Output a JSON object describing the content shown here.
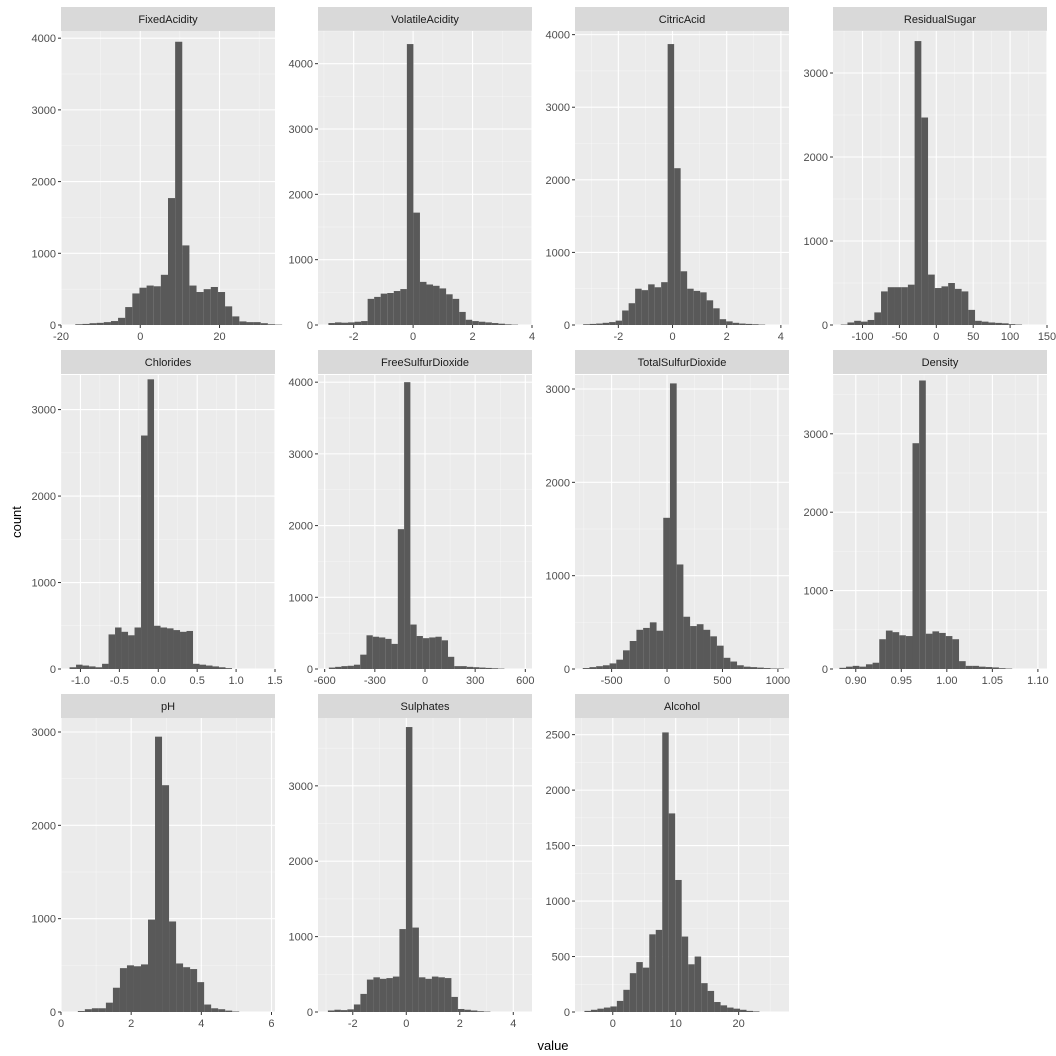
{
  "figure": {
    "xlabel": "value",
    "ylabel": "count",
    "colors": {
      "panel_bg": "#ebebeb",
      "strip_bg": "#d9d9d9",
      "grid_major": "#ffffff",
      "bar_fill": "#595959",
      "tick_text": "#4d4d4d"
    }
  },
  "chart_data": [
    {
      "type": "bar",
      "title": "FixedAcidity",
      "xlim": [
        -20,
        34
      ],
      "ylim": [
        0,
        4100
      ],
      "xticks": [
        -20,
        0,
        20
      ],
      "xtick_labels": [
        "-20",
        "0",
        "20"
      ],
      "yticks": [
        0,
        1000,
        2000,
        3000,
        4000
      ],
      "ytick_labels": [
        "0",
        "1000",
        "2000",
        "3000",
        "4000"
      ],
      "bin_left": -18.2,
      "bin_width": 1.8,
      "values": [
        0,
        10,
        15,
        25,
        30,
        40,
        55,
        100,
        250,
        440,
        520,
        550,
        540,
        700,
        1770,
        3950,
        1110,
        550,
        460,
        500,
        530,
        460,
        260,
        120,
        50,
        40,
        40,
        25,
        10,
        5
      ]
    },
    {
      "type": "bar",
      "title": "VolatileAcidity",
      "xlim": [
        -3.2,
        4
      ],
      "ylim": [
        0,
        4500
      ],
      "xticks": [
        -2,
        0,
        2,
        4
      ],
      "xtick_labels": [
        "-2",
        "0",
        "2",
        "4"
      ],
      "yticks": [
        0,
        1000,
        2000,
        3000,
        4000
      ],
      "ytick_labels": [
        "0",
        "1000",
        "2000",
        "3000",
        "4000"
      ],
      "bin_left": -2.85,
      "bin_width": 0.22,
      "values": [
        30,
        40,
        35,
        40,
        50,
        60,
        400,
        430,
        480,
        490,
        520,
        550,
        4300,
        1720,
        660,
        620,
        600,
        560,
        470,
        400,
        200,
        80,
        60,
        50,
        40,
        30,
        20,
        10,
        5,
        0
      ]
    },
    {
      "type": "bar",
      "title": "CitricAcid",
      "xlim": [
        -3.6,
        4.3
      ],
      "ylim": [
        0,
        4050
      ],
      "xticks": [
        -2,
        0,
        2,
        4
      ],
      "xtick_labels": [
        "-2",
        "0",
        "2",
        "4"
      ],
      "yticks": [
        0,
        1000,
        2000,
        3000,
        4000
      ],
      "ytick_labels": [
        "0",
        "1000",
        "2000",
        "3000",
        "4000"
      ],
      "bin_left": -3.3,
      "bin_width": 0.24,
      "values": [
        10,
        15,
        20,
        30,
        40,
        60,
        200,
        300,
        500,
        480,
        560,
        520,
        590,
        3870,
        2160,
        740,
        500,
        470,
        450,
        340,
        230,
        80,
        50,
        30,
        20,
        15,
        10,
        5,
        0,
        0
      ]
    },
    {
      "type": "bar",
      "title": "ResidualSugar",
      "xlim": [
        -140,
        150
      ],
      "ylim": [
        0,
        3500
      ],
      "xticks": [
        -100,
        -50,
        0,
        50,
        100,
        150
      ],
      "xtick_labels": [
        "-100",
        "-50",
        "0",
        "50",
        "100",
        "150"
      ],
      "yticks": [
        0,
        1000,
        2000,
        3000
      ],
      "ytick_labels": [
        "0",
        "1000",
        "2000",
        "3000"
      ],
      "bin_left": -129.5,
      "bin_width": 9.1,
      "values": [
        5,
        30,
        50,
        40,
        60,
        150,
        400,
        450,
        450,
        450,
        480,
        3380,
        2470,
        600,
        440,
        460,
        500,
        430,
        400,
        180,
        50,
        40,
        30,
        25,
        20,
        10,
        5,
        0,
        0,
        0
      ]
    },
    {
      "type": "bar",
      "title": "Chlorides",
      "xlim": [
        -1.25,
        1.5
      ],
      "ylim": [
        0,
        3400
      ],
      "xticks": [
        -1.0,
        -0.5,
        0.0,
        0.5,
        1.0,
        1.5
      ],
      "xtick_labels": [
        "-1.0",
        "-0.5",
        "0.0",
        "0.5",
        "1.0",
        "1.5"
      ],
      "yticks": [
        0,
        1000,
        2000,
        3000
      ],
      "ytick_labels": [
        "0",
        "1000",
        "2000",
        "3000"
      ],
      "bin_left": -1.14,
      "bin_width": 0.0835,
      "values": [
        20,
        50,
        40,
        30,
        20,
        60,
        400,
        480,
        430,
        390,
        480,
        2700,
        3350,
        500,
        480,
        470,
        450,
        430,
        440,
        60,
        50,
        40,
        30,
        20,
        10,
        0,
        0,
        0,
        0,
        0
      ]
    },
    {
      "type": "bar",
      "title": "FreeSulfurDioxide",
      "xlim": [
        -640,
        640
      ],
      "ylim": [
        0,
        4100
      ],
      "xticks": [
        -600,
        -300,
        0,
        300,
        600
      ],
      "xtick_labels": [
        "-600",
        "-300",
        "0",
        "300",
        "600"
      ],
      "bin_left": -575,
      "bin_width": 37.5,
      "yticks": [
        0,
        1000,
        2000,
        3000,
        4000
      ],
      "ytick_labels": [
        "0",
        "1000",
        "2000",
        "3000",
        "4000"
      ],
      "values": [
        20,
        30,
        40,
        45,
        60,
        200,
        470,
        450,
        440,
        420,
        350,
        1950,
        4000,
        620,
        460,
        430,
        440,
        450,
        400,
        170,
        40,
        40,
        30,
        25,
        20,
        15,
        10,
        5,
        0,
        0
      ]
    },
    {
      "type": "bar",
      "title": "TotalSulfurDioxide",
      "xlim": [
        -830,
        1100
      ],
      "ylim": [
        0,
        3150
      ],
      "xticks": [
        -500,
        0,
        500,
        1000
      ],
      "xtick_labels": [
        "-500",
        "0",
        "500",
        "1000"
      ],
      "yticks": [
        0,
        1000,
        2000,
        3000
      ],
      "ytick_labels": [
        "0",
        "1000",
        "2000",
        "3000"
      ],
      "bin_left": -760,
      "bin_width": 60.5,
      "values": [
        10,
        20,
        30,
        40,
        60,
        100,
        200,
        300,
        420,
        440,
        500,
        410,
        1620,
        3060,
        1120,
        560,
        460,
        480,
        420,
        350,
        250,
        120,
        80,
        40,
        25,
        20,
        15,
        10,
        5,
        5
      ]
    },
    {
      "type": "bar",
      "title": "Density",
      "xlim": [
        0.875,
        1.11
      ],
      "ylim": [
        0,
        3750
      ],
      "xticks": [
        0.9,
        0.95,
        1.0,
        1.05,
        1.1
      ],
      "xtick_labels": [
        "0.90",
        "0.95",
        "1.00",
        "1.05",
        "1.10"
      ],
      "yticks": [
        0,
        1000,
        2000,
        3000
      ],
      "ytick_labels": [
        "0",
        "1000",
        "2000",
        "3000"
      ],
      "bin_left": 0.882,
      "bin_width": 0.0073,
      "values": [
        15,
        30,
        40,
        30,
        60,
        80,
        380,
        490,
        470,
        430,
        420,
        2880,
        3680,
        450,
        480,
        460,
        420,
        380,
        100,
        40,
        40,
        30,
        25,
        20,
        10,
        5,
        0,
        0,
        0,
        0
      ]
    },
    {
      "type": "bar",
      "title": "pH",
      "xlim": [
        0,
        6.1
      ],
      "ylim": [
        0,
        3150
      ],
      "xticks": [
        0,
        2,
        4,
        6
      ],
      "xtick_labels": [
        "0",
        "2",
        "4",
        "6"
      ],
      "yticks": [
        0,
        1000,
        2000,
        3000
      ],
      "ytick_labels": [
        "0",
        "1000",
        "2000",
        "3000"
      ],
      "bin_left": 0.48,
      "bin_width": 0.2,
      "values": [
        10,
        30,
        40,
        40,
        100,
        260,
        470,
        500,
        490,
        510,
        990,
        2950,
        2430,
        970,
        520,
        480,
        460,
        320,
        80,
        40,
        30,
        15,
        5,
        0,
        0,
        0,
        0,
        0,
        0,
        0
      ]
    },
    {
      "type": "bar",
      "title": "Sulphates",
      "xlim": [
        -3.3,
        4.7
      ],
      "ylim": [
        0,
        3900
      ],
      "xticks": [
        -2,
        0,
        2,
        4
      ],
      "xtick_labels": [
        "-2",
        "0",
        "2",
        "4"
      ],
      "yticks": [
        0,
        1000,
        2000,
        3000
      ],
      "ytick_labels": [
        "0",
        "1000",
        "2000",
        "3000"
      ],
      "bin_left": -2.93,
      "bin_width": 0.243,
      "values": [
        20,
        30,
        25,
        35,
        100,
        240,
        430,
        460,
        440,
        450,
        470,
        1100,
        3780,
        1120,
        460,
        440,
        470,
        460,
        450,
        200,
        40,
        30,
        20,
        10,
        5,
        0,
        0,
        0,
        0,
        0
      ]
    },
    {
      "type": "bar",
      "title": "Alcohol",
      "xlim": [
        -6,
        28
      ],
      "ylim": [
        0,
        2650
      ],
      "xticks": [
        0,
        10,
        20
      ],
      "xtick_labels": [
        "0",
        "10",
        "20"
      ],
      "yticks": [
        0,
        500,
        1000,
        1500,
        2000,
        2500
      ],
      "ytick_labels": [
        "0",
        "500",
        "1000",
        "1500",
        "2000",
        "2500"
      ],
      "bin_left": -4.5,
      "bin_width": 1.03,
      "values": [
        10,
        20,
        30,
        40,
        50,
        100,
        200,
        350,
        450,
        400,
        700,
        740,
        2520,
        1790,
        1190,
        680,
        430,
        500,
        260,
        190,
        90,
        60,
        40,
        30,
        20,
        10,
        5,
        0,
        0,
        0
      ]
    }
  ]
}
